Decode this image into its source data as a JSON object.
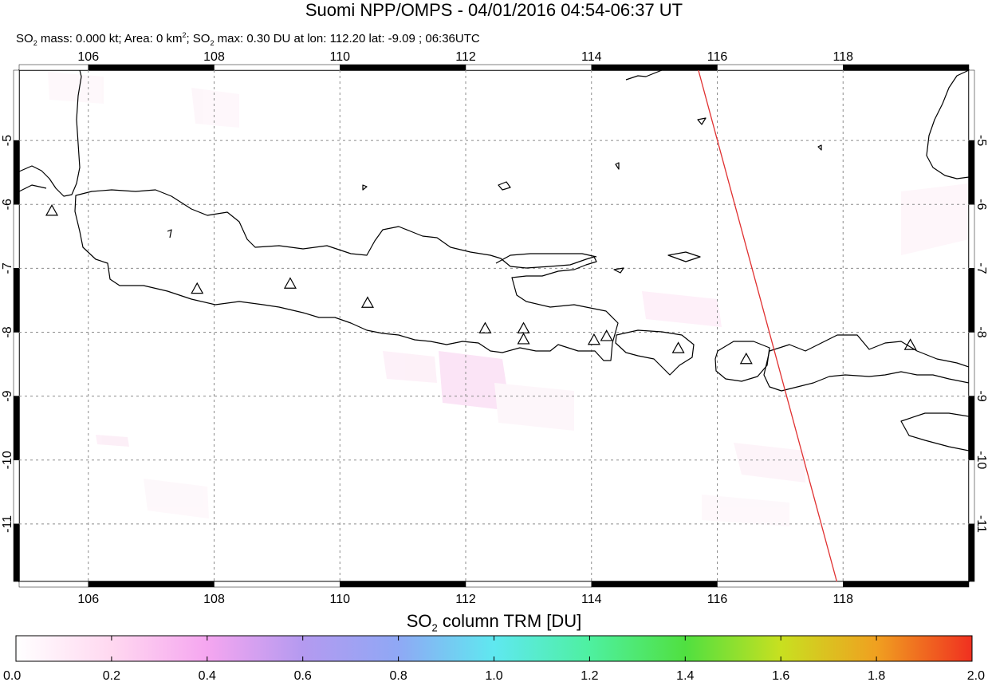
{
  "title": "Suomi NPP/OMPS - 04/01/2016 04:54-06:37 UT",
  "subtitle": {
    "mass_label": "SO",
    "mass_sub": "2",
    "mass_text": " mass: 0.000 kt; Area: 0 km",
    "area_sup": "2",
    "sep": "; SO",
    "max_sub": "2",
    "max_text": " max: 0.30 DU at lon: 112.20 lat: -9.09 ; 06:36UTC"
  },
  "map": {
    "lon_range": [
      104.9,
      120.0
    ],
    "lat_range": [
      -11.9,
      -3.9
    ],
    "lon_ticks": [
      "106",
      "108",
      "110",
      "112",
      "114",
      "116",
      "118"
    ],
    "lat_ticks": [
      "-5",
      "-6",
      "-7",
      "-8",
      "-9",
      "-10",
      "-11"
    ],
    "volcanoes": [
      {
        "lon": 105.42,
        "lat": -6.1
      },
      {
        "lon": 107.73,
        "lat": -7.32
      },
      {
        "lon": 109.21,
        "lat": -7.24
      },
      {
        "lon": 110.44,
        "lat": -7.54
      },
      {
        "lon": 112.31,
        "lat": -7.94
      },
      {
        "lon": 112.92,
        "lat": -7.94
      },
      {
        "lon": 112.92,
        "lat": -8.11
      },
      {
        "lon": 114.04,
        "lat": -8.12
      },
      {
        "lon": 114.24,
        "lat": -8.06
      },
      {
        "lon": 115.38,
        "lat": -8.25
      },
      {
        "lon": 116.46,
        "lat": -8.42
      },
      {
        "lon": 119.07,
        "lat": -8.2
      }
    ],
    "orbit_edge": [
      {
        "lon": 115.7,
        "lat": -3.9
      },
      {
        "lon": 117.9,
        "lat": -11.9
      }
    ],
    "colors": {
      "coast": "#000000",
      "grid": "#8c8c8c",
      "orbit": "#e03030",
      "volcano": "#000000"
    }
  },
  "colorbar": {
    "title_main": "SO",
    "title_sub": "2",
    "title_rest": " column TRM [DU]",
    "labels": [
      "0.0",
      "0.2",
      "0.4",
      "0.6",
      "0.8",
      "1.0",
      "1.2",
      "1.4",
      "1.6",
      "1.8",
      "2.0"
    ],
    "stops": [
      "#ffffff",
      "#ffd8f0",
      "#f5a6f0",
      "#b49af0",
      "#8fa8f5",
      "#5fe8f0",
      "#4ef0a0",
      "#50e040",
      "#c8e020",
      "#f0a020",
      "#f03020"
    ]
  }
}
